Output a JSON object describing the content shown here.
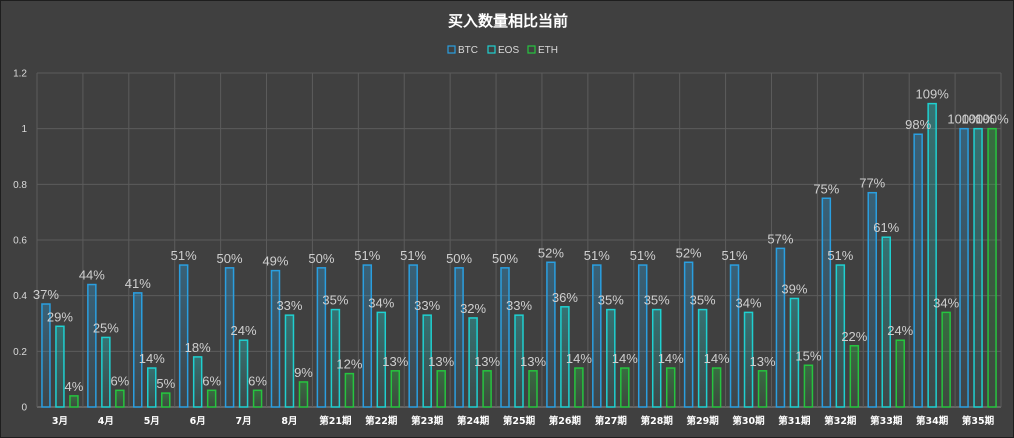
{
  "chart_data": {
    "type": "bar",
    "title": "买入数量相比当前",
    "categories": [
      "3月",
      "4月",
      "5月",
      "6月",
      "7月",
      "8月",
      "第21期",
      "第22期",
      "第23期",
      "第24期",
      "第25期",
      "第26期",
      "第27期",
      "第28期",
      "第29期",
      "第30期",
      "第31期",
      "第32期",
      "第33期",
      "第34期",
      "第35期"
    ],
    "series": [
      {
        "name": "BTC",
        "color": "#2a9fe0",
        "values": [
          0.37,
          0.44,
          0.41,
          0.51,
          0.5,
          0.49,
          0.5,
          0.51,
          0.51,
          0.5,
          0.5,
          0.52,
          0.51,
          0.51,
          0.52,
          0.51,
          0.57,
          0.75,
          0.77,
          0.98,
          1.0
        ],
        "labels": [
          "37%",
          "44%",
          "41%",
          "51%",
          "50%",
          "49%",
          "50%",
          "51%",
          "51%",
          "50%",
          "50%",
          "52%",
          "51%",
          "51%",
          "52%",
          "51%",
          "57%",
          "75%",
          "77%",
          "98%",
          "100%"
        ]
      },
      {
        "name": "EOS",
        "color": "#1fd0d0",
        "values": [
          0.29,
          0.25,
          0.14,
          0.18,
          0.24,
          0.33,
          0.35,
          0.34,
          0.33,
          0.32,
          0.33,
          0.36,
          0.35,
          0.35,
          0.35,
          0.34,
          0.39,
          0.51,
          0.61,
          1.09,
          1.0
        ],
        "labels": [
          "29%",
          "25%",
          "14%",
          "18%",
          "24%",
          "33%",
          "35%",
          "34%",
          "33%",
          "32%",
          "33%",
          "36%",
          "35%",
          "35%",
          "35%",
          "34%",
          "39%",
          "51%",
          "61%",
          "109%",
          "100%"
        ]
      },
      {
        "name": "ETH",
        "color": "#26c43f",
        "values": [
          0.04,
          0.06,
          0.05,
          0.06,
          0.06,
          0.09,
          0.12,
          0.13,
          0.13,
          0.13,
          0.13,
          0.14,
          0.14,
          0.14,
          0.14,
          0.13,
          0.15,
          0.22,
          0.24,
          0.34,
          1.0
        ],
        "labels": [
          "4%",
          "6%",
          "5%",
          "6%",
          "6%",
          "9%",
          "12%",
          "13%",
          "13%",
          "13%",
          "13%",
          "14%",
          "14%",
          "14%",
          "14%",
          "13%",
          "15%",
          "22%",
          "24%",
          "34%",
          "100%"
        ]
      }
    ],
    "yticks": [
      "0",
      "0.2",
      "0.4",
      "0.6",
      "0.8",
      "1",
      "1.2"
    ],
    "ylim": [
      0,
      1.2
    ],
    "grid": true,
    "legend_position": "top-center",
    "xlabel": "",
    "ylabel": ""
  }
}
